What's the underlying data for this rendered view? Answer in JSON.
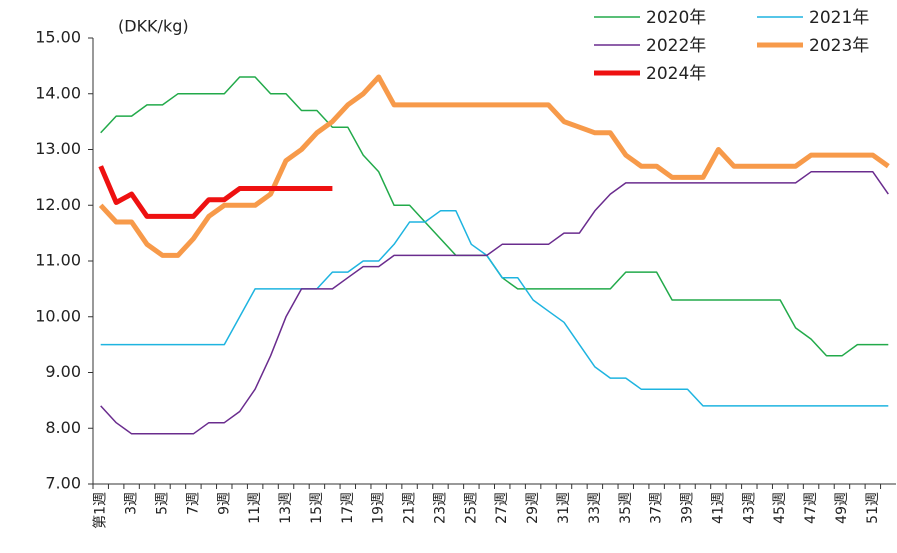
{
  "chart_data": {
    "type": "line",
    "unit_label": "(DKK/kg)",
    "categories": [
      "第1週",
      null,
      "3週",
      null,
      "5週",
      null,
      "7週",
      null,
      "9週",
      null,
      "11週",
      null,
      "13週",
      null,
      "15週",
      null,
      "17週",
      null,
      "19週",
      null,
      "21週",
      null,
      "23週",
      null,
      "25週",
      null,
      "27週",
      null,
      "29週",
      null,
      "31週",
      null,
      "33週",
      null,
      "35週",
      null,
      "37週",
      null,
      "39週",
      null,
      "41週",
      null,
      "43週",
      null,
      "45週",
      null,
      "47週",
      null,
      "49週",
      null,
      "51週",
      null
    ],
    "ylim": [
      7,
      15
    ],
    "yticks": [
      {
        "value": 7,
        "label": "7.00"
      },
      {
        "value": 8,
        "label": "8.00"
      },
      {
        "value": 9,
        "label": "9.00"
      },
      {
        "value": 10,
        "label": "10.00"
      },
      {
        "value": 11,
        "label": "11.00"
      },
      {
        "value": 12,
        "label": "12.00"
      },
      {
        "value": 13,
        "label": "13.00"
      },
      {
        "value": 14,
        "label": "14.00"
      },
      {
        "value": 15,
        "label": "15.00"
      }
    ],
    "grid": false,
    "legend": "top-right",
    "series": [
      {
        "name": "2020年",
        "color": "#22aa4a",
        "line_width": 1.5,
        "values": [
          13.3,
          13.6,
          13.6,
          13.8,
          13.8,
          14.0,
          14.0,
          14.0,
          14.0,
          14.3,
          14.3,
          14.0,
          14.0,
          13.7,
          13.7,
          13.4,
          13.4,
          12.9,
          12.6,
          12.0,
          12.0,
          11.7,
          11.4,
          11.1,
          11.1,
          11.1,
          10.7,
          10.5,
          10.5,
          10.5,
          10.5,
          10.5,
          10.5,
          10.5,
          10.8,
          10.8,
          10.8,
          10.3,
          10.3,
          10.3,
          10.3,
          10.3,
          10.3,
          10.3,
          10.3,
          9.8,
          9.6,
          9.3,
          9.3,
          9.5,
          9.5,
          9.5
        ]
      },
      {
        "name": "2021年",
        "color": "#1eb4e0",
        "line_width": 1.5,
        "values": [
          9.5,
          9.5,
          9.5,
          9.5,
          9.5,
          9.5,
          9.5,
          9.5,
          9.5,
          10.0,
          10.5,
          10.5,
          10.5,
          10.5,
          10.5,
          10.8,
          10.8,
          11.0,
          11.0,
          11.3,
          11.7,
          11.7,
          11.9,
          11.9,
          11.3,
          11.1,
          10.7,
          10.7,
          10.3,
          10.1,
          9.9,
          9.5,
          9.1,
          8.9,
          8.9,
          8.7,
          8.7,
          8.7,
          8.7,
          8.4,
          8.4,
          8.4,
          8.4,
          8.4,
          8.4,
          8.4,
          8.4,
          8.4,
          8.4,
          8.4,
          8.4,
          8.4
        ]
      },
      {
        "name": "2022年",
        "color": "#6a2c8e",
        "line_width": 1.5,
        "values": [
          8.4,
          8.1,
          7.9,
          7.9,
          7.9,
          7.9,
          7.9,
          8.1,
          8.1,
          8.3,
          8.7,
          9.3,
          10.0,
          10.5,
          10.5,
          10.5,
          10.7,
          10.9,
          10.9,
          11.1,
          11.1,
          11.1,
          11.1,
          11.1,
          11.1,
          11.1,
          11.3,
          11.3,
          11.3,
          11.3,
          11.5,
          11.5,
          11.9,
          12.2,
          12.4,
          12.4,
          12.4,
          12.4,
          12.4,
          12.4,
          12.4,
          12.4,
          12.4,
          12.4,
          12.4,
          12.4,
          12.6,
          12.6,
          12.6,
          12.6,
          12.6,
          12.2
        ]
      },
      {
        "name": "2023年",
        "color": "#f79a4a",
        "line_width": 5,
        "values": [
          12.0,
          11.7,
          11.7,
          11.3,
          11.1,
          11.1,
          11.4,
          11.8,
          12.0,
          12.0,
          12.0,
          12.2,
          12.8,
          13.0,
          13.3,
          13.5,
          13.8,
          14.0,
          14.3,
          13.8,
          13.8,
          13.8,
          13.8,
          13.8,
          13.8,
          13.8,
          13.8,
          13.8,
          13.8,
          13.8,
          13.5,
          13.4,
          13.3,
          13.3,
          12.9,
          12.7,
          12.7,
          12.5,
          12.5,
          12.5,
          13.0,
          12.7,
          12.7,
          12.7,
          12.7,
          12.7,
          12.9,
          12.9,
          12.9,
          12.9,
          12.9,
          12.7
        ]
      },
      {
        "name": "2024年",
        "color": "#ee1111",
        "line_width": 5,
        "values": [
          12.7,
          12.05,
          12.2,
          11.8,
          11.8,
          11.8,
          11.8,
          12.1,
          12.1,
          12.3,
          12.3,
          12.3,
          12.3,
          12.3,
          12.3,
          12.3,
          null,
          null,
          null,
          null,
          null,
          null,
          null,
          null,
          null,
          null,
          null,
          null,
          null,
          null,
          null,
          null,
          null,
          null,
          null,
          null,
          null,
          null,
          null,
          null,
          null,
          null,
          null,
          null,
          null,
          null,
          null,
          null,
          null,
          null,
          null,
          null
        ]
      }
    ]
  }
}
